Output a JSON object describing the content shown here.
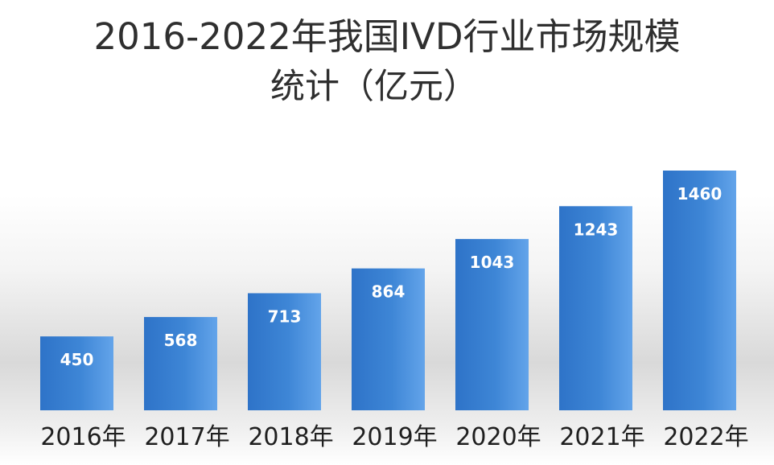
{
  "chart_data": {
    "type": "bar",
    "title_line1": "2016-2022年我国IVD行业市场规模",
    "title_line2": "统计（亿元）",
    "categories": [
      "2016年",
      "2017年",
      "2018年",
      "2019年",
      "2020年",
      "2021年",
      "2022年"
    ],
    "values": [
      450,
      568,
      713,
      864,
      1043,
      1243,
      1460
    ],
    "ylim": [
      0,
      1650
    ],
    "grid": false,
    "bar_color": "#3E86D6",
    "bar_dark": "#2E73C8",
    "bar_light": "#63A4EA",
    "label_color": "#FFFFFF",
    "tick_color": "#1F1F1F"
  }
}
